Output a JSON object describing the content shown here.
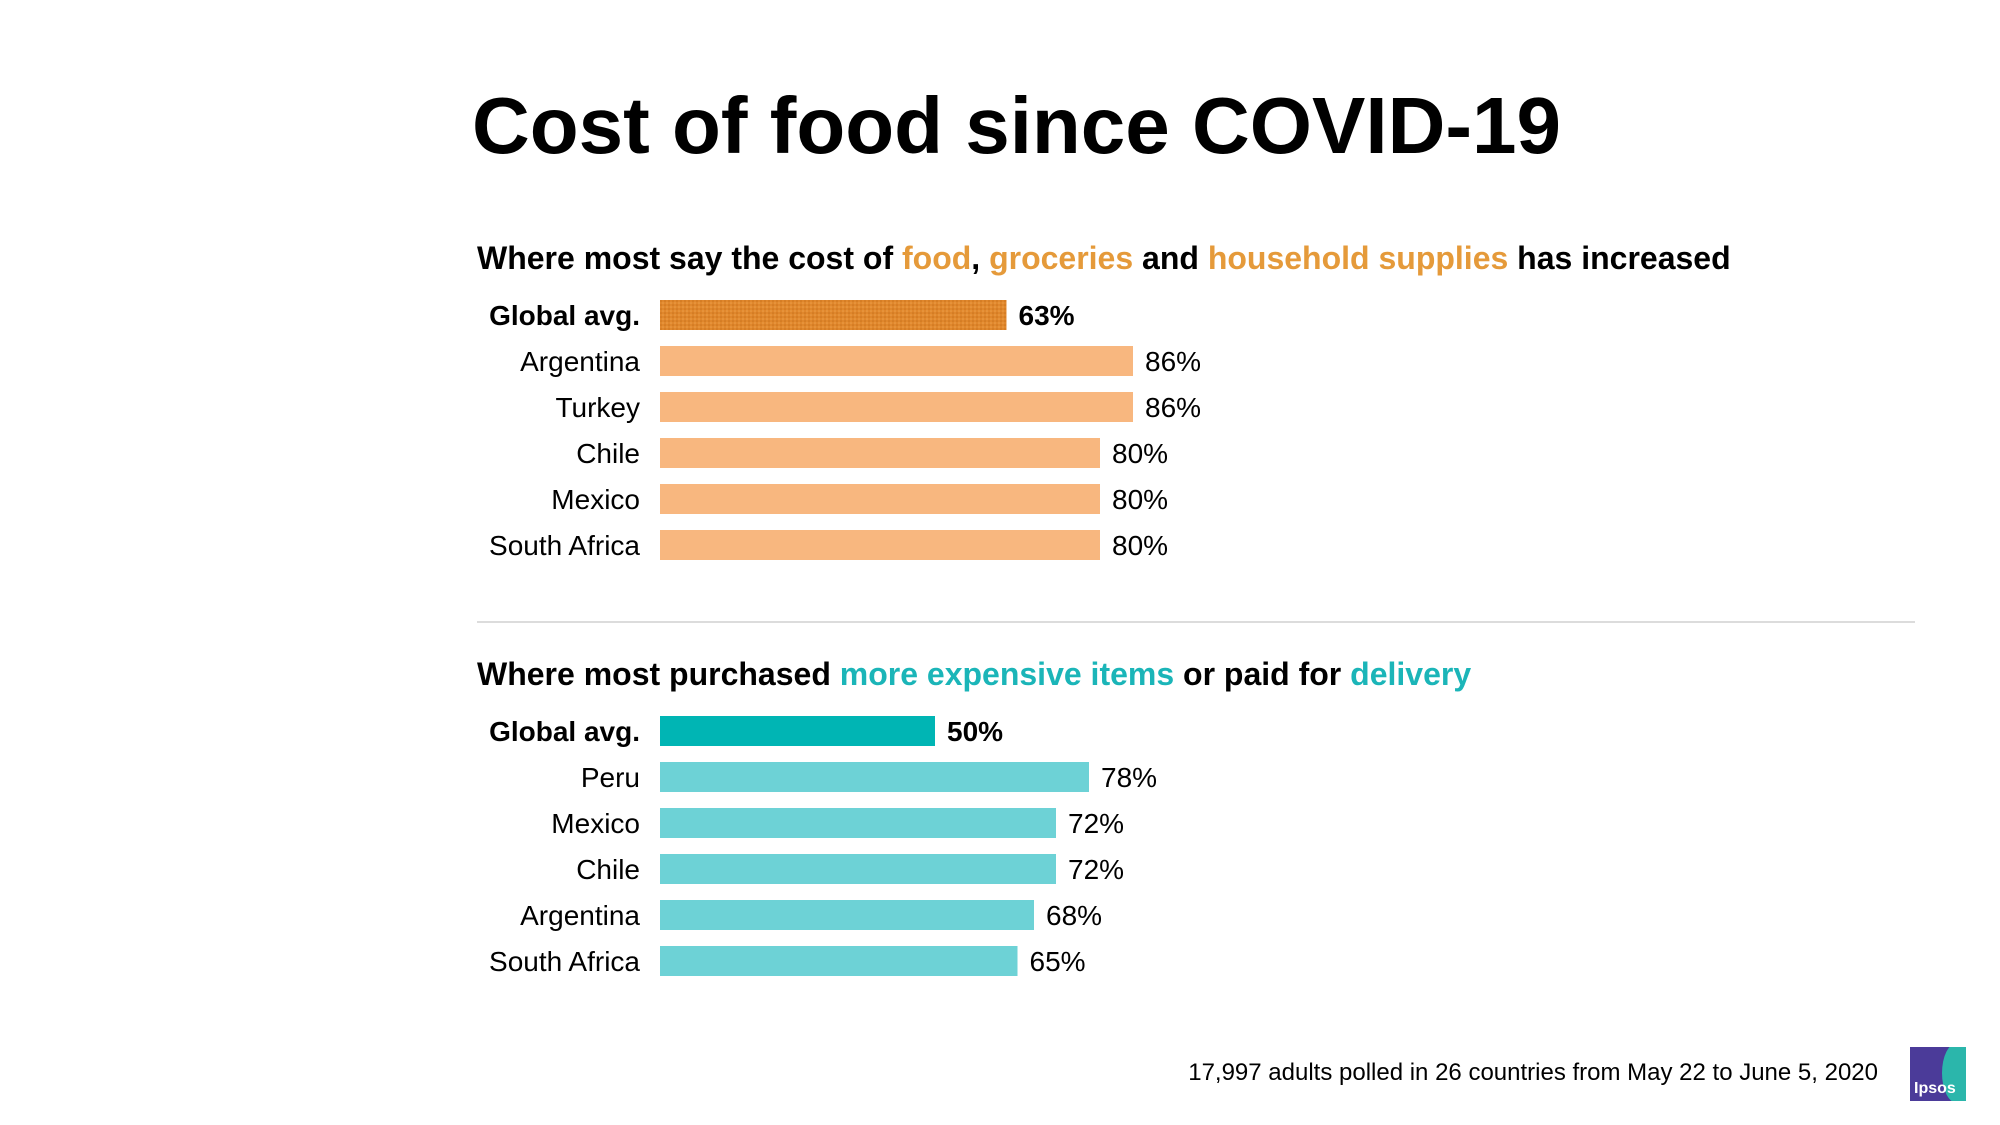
{
  "title": "Cost of food since COVID-19",
  "colors": {
    "orange_highlight": "#e59a3a",
    "orange_avg_bar": "#e0872c",
    "orange_bar": "#f8b77f",
    "teal_highlight": "#1bb5b8",
    "teal_avg_bar": "#00b5b4",
    "teal_bar": "#6dd2d6"
  },
  "chart_data": [
    {
      "type": "bar",
      "orientation": "horizontal",
      "subtitle_parts": {
        "p1": "Where most say the cost of ",
        "food": "food",
        "p2": ", ",
        "groceries": "groceries",
        "p3": " and ",
        "household": "household supplies",
        "p4": " has increased"
      },
      "categories": [
        "Global avg.",
        "Argentina",
        "Turkey",
        "Chile",
        "Mexico",
        "South Africa"
      ],
      "values": [
        63,
        86,
        86,
        80,
        80,
        80
      ],
      "labels": [
        "63%",
        "86%",
        "86%",
        "80%",
        "80%",
        "80%"
      ],
      "xlim": [
        0,
        100
      ],
      "grid": false
    },
    {
      "type": "bar",
      "orientation": "horizontal",
      "subtitle_parts": {
        "p1": "Where most purchased ",
        "items": "more expensive items",
        "p2": " or paid for ",
        "delivery": "delivery"
      },
      "categories": [
        "Global avg.",
        "Peru",
        "Mexico",
        "Chile",
        "Argentina",
        "South Africa"
      ],
      "values": [
        50,
        78,
        72,
        72,
        68,
        65
      ],
      "labels": [
        "50%",
        "78%",
        "72%",
        "72%",
        "68%",
        "65%"
      ],
      "xlim": [
        0,
        100
      ],
      "grid": false
    }
  ],
  "footnote": "17,997 adults polled in 26 countries from May 22 to June 5, 2020",
  "logo": {
    "text": "Ipsos"
  }
}
